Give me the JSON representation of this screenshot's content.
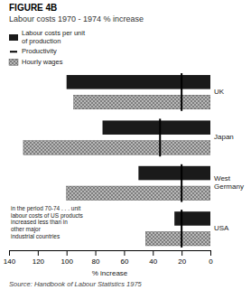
{
  "chart_data": {
    "type": "bar",
    "orientation": "horizontal",
    "title": "FIGURE 4B",
    "subtitle": "Labour costs 1970 - 1974 % increase",
    "xlabel": "% increase",
    "annotation": "in the period 70-74 . . . unit\nlabour costs of US products\nincreased less than in\nother major\nindustrial countries",
    "source": "Source: Handbook of Labour Statistics 1975",
    "categories": [
      "UK",
      "Japan",
      "West\nGermany",
      "USA"
    ],
    "series": [
      {
        "name": "Labour costs per unit\nof production",
        "color": "#1a1a1a",
        "values": [
          100,
          75,
          50,
          25
        ]
      },
      {
        "name": "Productivity",
        "type": "marker",
        "color": "black",
        "values": [
          20,
          35,
          20,
          20
        ]
      },
      {
        "name": "Hourly wages",
        "color": "#b8b8b8",
        "values": [
          95,
          130,
          100,
          45
        ]
      }
    ],
    "xlim": [
      140,
      0
    ],
    "xticks": [
      140,
      120,
      100,
      80,
      60,
      40,
      20,
      0
    ],
    "grid": false,
    "legend": "upper left"
  }
}
